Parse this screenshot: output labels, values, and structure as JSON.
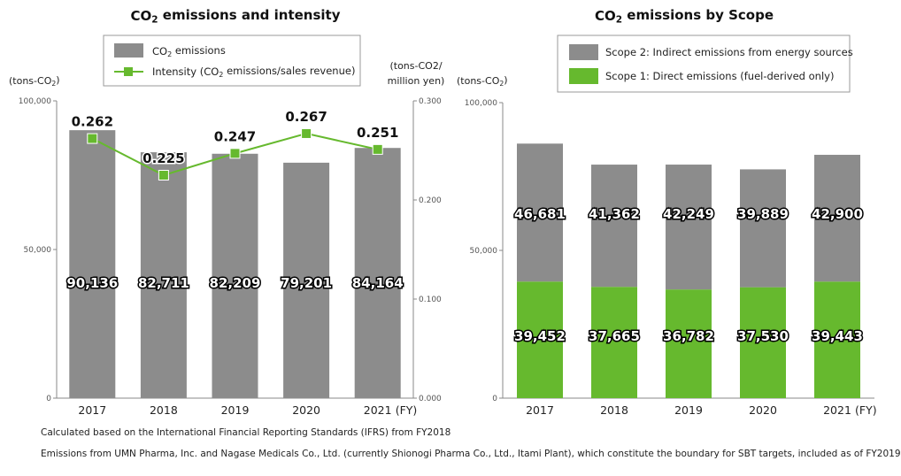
{
  "chart_data": [
    {
      "type": "bar",
      "title": "CO2 emissions and intensity",
      "categories": [
        "2017",
        "2018",
        "2019",
        "2020",
        "2021"
      ],
      "x_suffix": "(FY)",
      "ylabel": "(tons-CO2)",
      "ylim": [
        0,
        100000
      ],
      "yticks": [
        "0",
        "50,000",
        "100,000"
      ],
      "y2label": [
        "(tons-CO2/",
        "million yen)"
      ],
      "y2lim": [
        0,
        0.3
      ],
      "y2ticks": [
        "0.000",
        "0.100",
        "0.200",
        "0.300"
      ],
      "series": [
        {
          "name": "CO2 emissions",
          "type": "bar",
          "color": "#8c8c8c",
          "values": [
            90136,
            82711,
            82209,
            79201,
            84164
          ],
          "labels": [
            "90,136",
            "82,711",
            "82,209",
            "79,201",
            "84,164"
          ]
        },
        {
          "name": "Intensity (CO2 emissions/sales revenue)",
          "type": "line",
          "axis": "right",
          "color": "#66b92e",
          "values": [
            0.262,
            0.225,
            0.247,
            0.267,
            0.251
          ],
          "labels": [
            "0.262",
            "0.225",
            "0.247",
            "0.267",
            "0.251"
          ]
        }
      ],
      "legend": "top-center"
    },
    {
      "type": "bar",
      "stacked": true,
      "title": "CO2 emissions by Scope",
      "categories": [
        "2017",
        "2018",
        "2019",
        "2020",
        "2021"
      ],
      "x_suffix": "(FY)",
      "ylabel": "(tons-CO2)",
      "ylim": [
        0,
        100000
      ],
      "yticks": [
        "0",
        "50,000",
        "100,000"
      ],
      "series": [
        {
          "name": "Scope 1: Direct emissions (fuel-derived only)",
          "color": "#66b92e",
          "values": [
            39452,
            37665,
            36782,
            37530,
            39443
          ],
          "labels": [
            "39,452",
            "37,665",
            "36,782",
            "37,530",
            "39,443"
          ]
        },
        {
          "name": "Scope 2: Indirect emissions from energy sources",
          "color": "#8c8c8c",
          "values": [
            46681,
            41362,
            42249,
            39889,
            42900
          ],
          "labels": [
            "46,681",
            "41,362",
            "42,249",
            "39,889",
            "42,900"
          ]
        }
      ],
      "legend": "top-center"
    }
  ],
  "notes": [
    "Calculated based on the International Financial Reporting Standards (IFRS) from FY2018",
    "Emissions from UMN Pharma, Inc. and Nagase Medicals Co., Ltd. (currently Shionogi Pharma Co., Ltd., Itami Plant), which constitute the boundary for SBT targets, included as of FY2019"
  ]
}
